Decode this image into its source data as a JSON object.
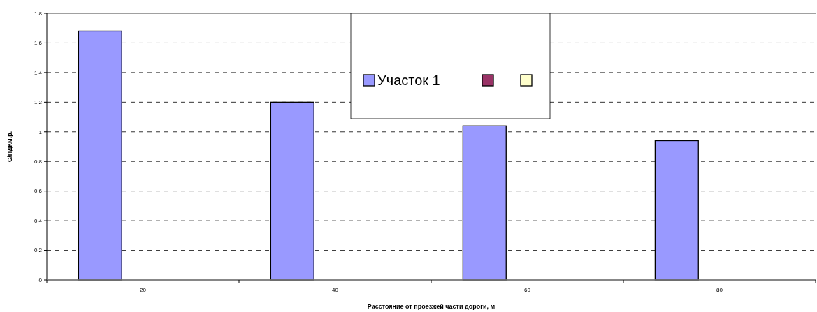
{
  "chart_data": {
    "type": "bar",
    "xlabel": "Расстояние от проезжей части дороги, м",
    "ylabel": "С/ПДКм.р.",
    "categories": [
      "20",
      "40",
      "60",
      "80"
    ],
    "series": [
      {
        "name": "Участок 1",
        "color": "#9999ff",
        "values": [
          1.68,
          1.2,
          1.04,
          0.94
        ]
      },
      {
        "color": "#993366",
        "values": [
          null,
          null,
          null,
          null
        ]
      },
      {
        "color": "#ffffcc",
        "values": [
          null,
          null,
          null,
          null
        ]
      }
    ],
    "ylim": [
      0,
      1.8
    ],
    "yticks": [
      0,
      {
        "value": 0.2,
        "label": "0,2"
      },
      {
        "value": 0.4,
        "label": "0,4"
      },
      {
        "value": 0.6,
        "label": "0,6"
      },
      {
        "value": 0.8,
        "label": "0,8"
      },
      1,
      {
        "value": 1.2,
        "label": "1,2"
      },
      {
        "value": 1.4,
        "label": "1,4"
      },
      {
        "value": 1.6,
        "label": "1,6"
      },
      {
        "value": 1.8,
        "label": "1,8"
      }
    ],
    "grid": "y",
    "legend": "top"
  }
}
